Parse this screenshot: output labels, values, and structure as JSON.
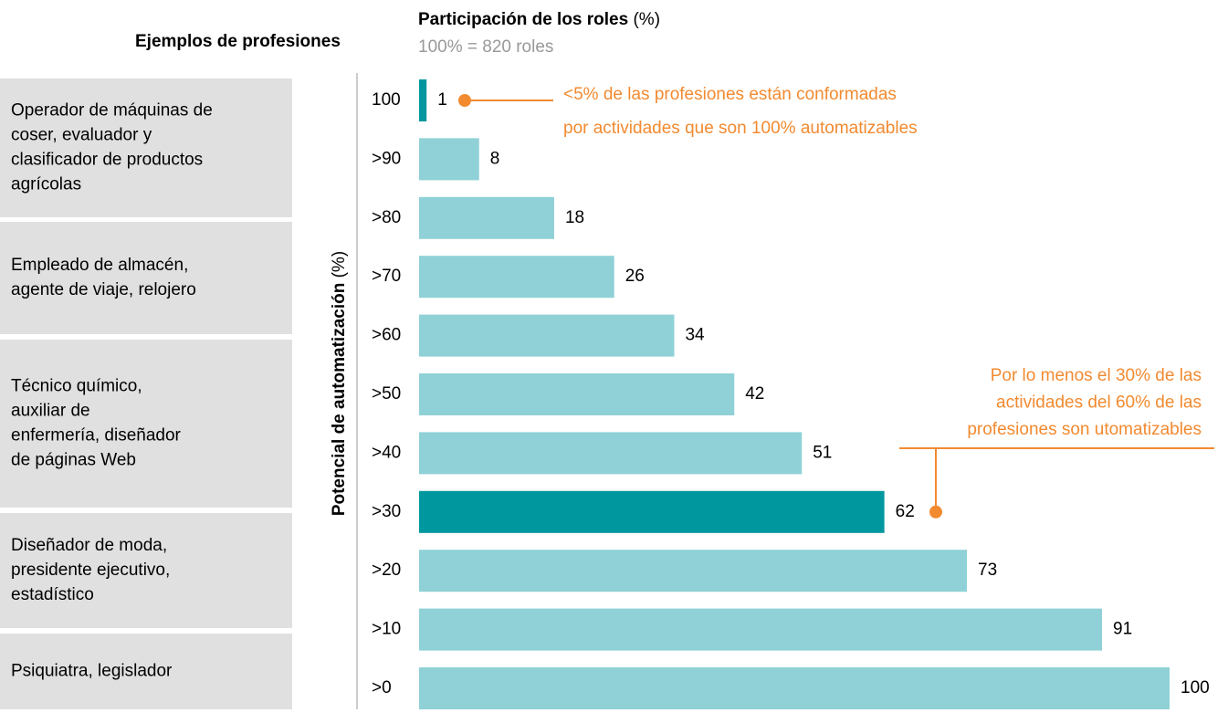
{
  "chart_data": {
    "type": "bar",
    "orientation": "horizontal",
    "title": "Participación de los roles",
    "title_unit": "(%)",
    "subtitle": "100% = 820 roles",
    "y_label": "Potencial de automatización",
    "y_label_unit": "(%)",
    "categories": [
      "100",
      ">90",
      ">80",
      ">70",
      ">60",
      ">50",
      ">40",
      ">30",
      ">20",
      ">10",
      ">0"
    ],
    "values": [
      1,
      8,
      18,
      26,
      34,
      42,
      51,
      62,
      73,
      91,
      100
    ],
    "colors": [
      "#00979f",
      "#8fd1d6",
      "#8fd1d6",
      "#8fd1d6",
      "#8fd1d6",
      "#8fd1d6",
      "#8fd1d6",
      "#00979f",
      "#8fd1d6",
      "#8fd1d6",
      "#8fd1d6"
    ],
    "xlim": [
      0,
      100
    ],
    "annotations": [
      {
        "lines": [
          "<5% de las profesiones están conformadas",
          "por actividades que son 100% automatizables"
        ],
        "color": "#f28a30"
      },
      {
        "lines": [
          "Por lo menos el 30% de las",
          "actividades del 60% de las",
          "profesiones son utomatizables"
        ],
        "color": "#f28a30"
      }
    ]
  },
  "examples": {
    "title": "Ejemplos de profesiones",
    "items": [
      [
        "Operador de máquinas de",
        "coser, evaluador y",
        "clasificador de productos",
        "agrícolas"
      ],
      [
        "Empleado de almacén,",
        "agente de viaje, relojero"
      ],
      [
        "Técnico químico,",
        "auxiliar de",
        "enfermería, diseñador",
        "de páginas Web"
      ],
      [
        "Diseñador de moda,",
        "presidente ejecutivo,",
        "estadístico"
      ],
      [
        "Psiquiatra, legislador"
      ]
    ]
  }
}
